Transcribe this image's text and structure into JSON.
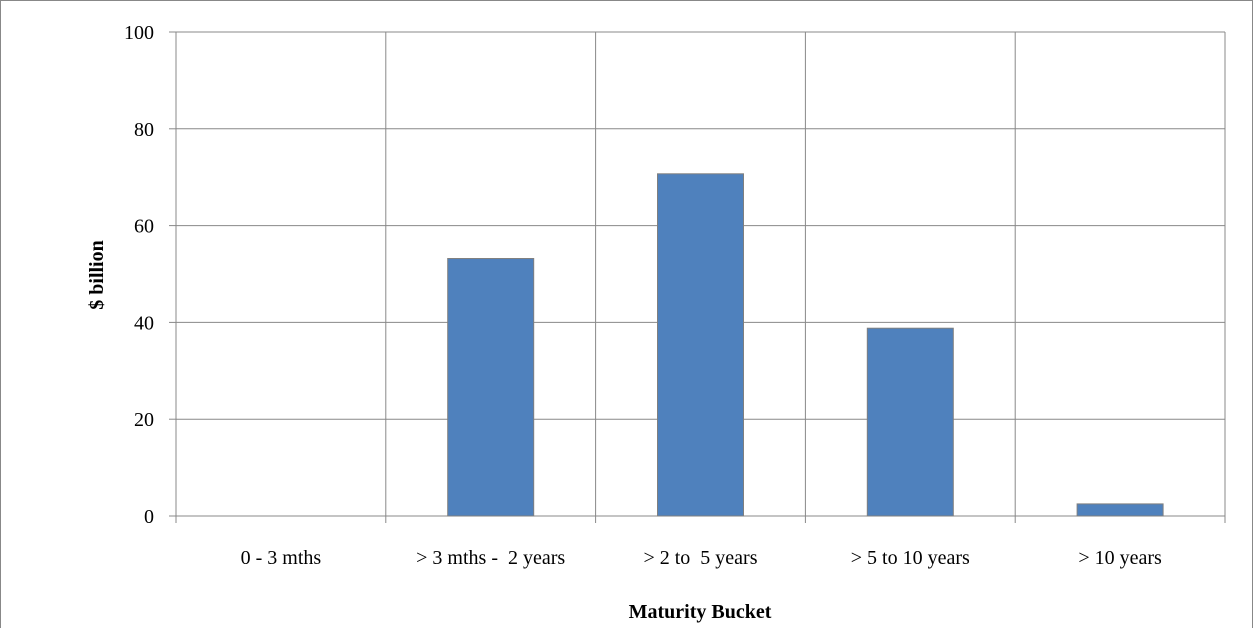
{
  "chart_data": {
    "type": "bar",
    "categories": [
      "0 - 3 mths",
      "> 3 mths -  2 years",
      "> 2 to  5 years",
      "> 5 to 10 years",
      "> 10 years"
    ],
    "values": [
      0,
      53.2,
      70.7,
      38.8,
      2.5
    ],
    "color": "#4f81bd",
    "ylim": [
      0,
      100
    ],
    "yticks": [
      0,
      20,
      40,
      60,
      80,
      100
    ],
    "grid": true,
    "y_label": "$ billion",
    "x_label": "Maturity Bucket"
  }
}
